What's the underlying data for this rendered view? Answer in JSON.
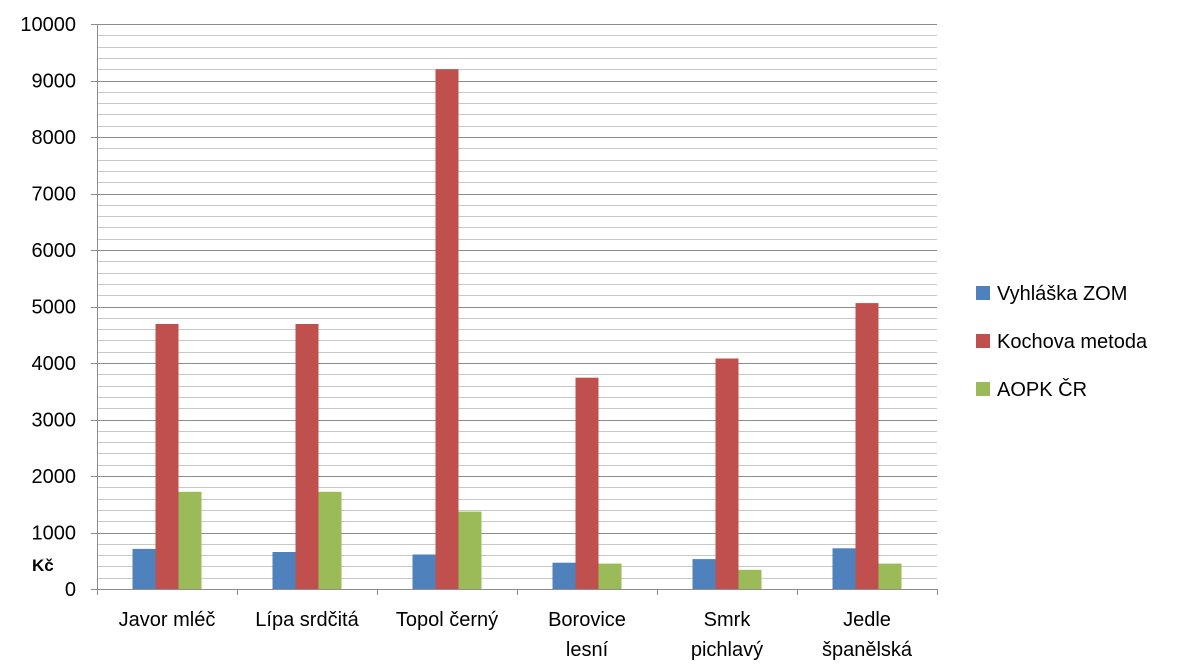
{
  "chart_data": {
    "type": "bar",
    "categories": [
      [
        "Javor mléč"
      ],
      [
        "Lípa srdčitá"
      ],
      [
        "Topol černý"
      ],
      [
        "Borovice",
        "lesní"
      ],
      [
        "Smrk",
        "pichlavý"
      ],
      [
        "Jedle",
        "španělská"
      ]
    ],
    "series": [
      {
        "name": "Vyhláška ZOM",
        "color": "#4F81BD",
        "values": [
          710,
          655,
          610,
          465,
          530,
          720
        ]
      },
      {
        "name": "Kochova metoda",
        "color": "#C0504D",
        "values": [
          4690,
          4690,
          9200,
          3740,
          4080,
          5060
        ]
      },
      {
        "name": "AOPK ČR",
        "color": "#9BBB59",
        "values": [
          1720,
          1720,
          1370,
          450,
          340,
          450
        ]
      }
    ],
    "ylim": [
      0,
      10000
    ],
    "ymajor": 1000,
    "yminor": 200,
    "ytick_labels": [
      "0",
      "1000",
      "2000",
      "3000",
      "4000",
      "5000",
      "6000",
      "7000",
      "8000",
      "9000",
      "10000"
    ],
    "unit_label": "Kč",
    "grid": true,
    "legend_position": "right"
  }
}
